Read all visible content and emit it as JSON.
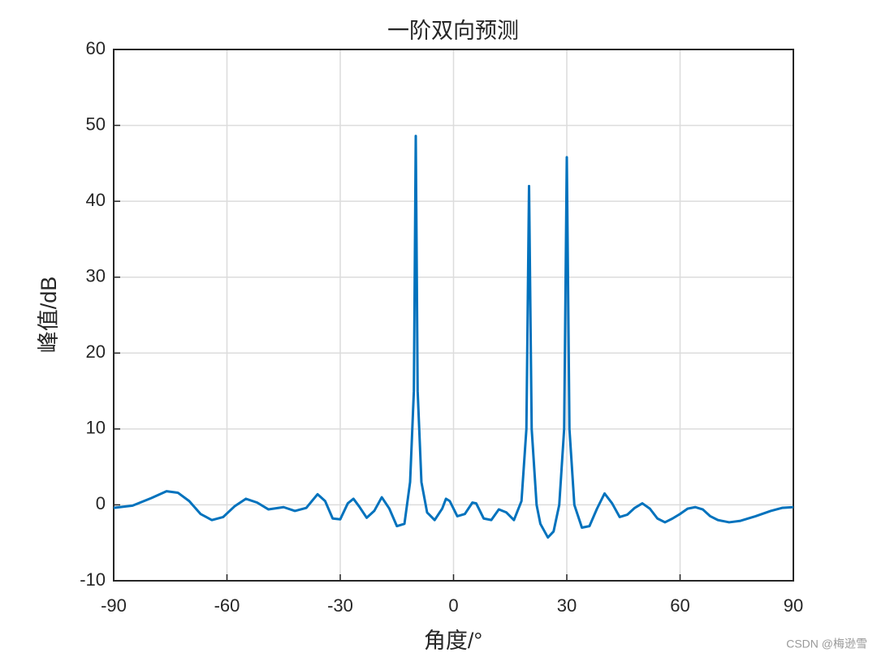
{
  "chart_data": {
    "type": "line",
    "title": "一阶双向预测",
    "x_label": "角度/°",
    "y_label": "峰值/dB",
    "watermark": "CSDN @梅逊雪",
    "xlim": [
      -90,
      90
    ],
    "ylim": [
      -10,
      60
    ],
    "xticks": [
      -90,
      -60,
      -30,
      0,
      30,
      60,
      90
    ],
    "yticks": [
      -10,
      0,
      10,
      20,
      30,
      40,
      50,
      60
    ],
    "grid": true,
    "series": [
      {
        "color": "#0072bd",
        "x": [
          -90,
          -85,
          -80,
          -76,
          -73,
          -70,
          -67,
          -64,
          -61,
          -58,
          -55,
          -52,
          -49,
          -45,
          -42,
          -39,
          -36,
          -34,
          -32,
          -30,
          -28,
          -26.5,
          -25,
          -23,
          -21,
          -19,
          -17,
          -15,
          -13,
          -11.5,
          -10.5,
          -10,
          -9.5,
          -8.5,
          -7,
          -5,
          -3,
          -2,
          -1,
          1,
          3,
          5,
          6,
          8,
          10,
          12,
          14,
          16,
          18,
          19.3,
          20,
          20.7,
          22,
          23,
          25,
          26.5,
          28,
          29.3,
          30,
          30.7,
          32,
          34,
          36,
          38,
          40,
          42,
          44,
          46,
          48,
          50,
          52,
          54,
          56,
          58,
          60,
          62,
          64,
          66,
          68,
          70,
          73,
          76,
          80,
          84,
          87,
          90
        ],
        "values": [
          -0.4,
          -0.1,
          0.9,
          1.8,
          1.6,
          0.5,
          -1.2,
          -2.0,
          -1.6,
          -0.2,
          0.8,
          0.3,
          -0.6,
          -0.3,
          -0.8,
          -0.4,
          1.4,
          0.5,
          -1.8,
          -1.9,
          0.2,
          0.8,
          -0.2,
          -1.7,
          -0.8,
          1.0,
          -0.5,
          -2.8,
          -2.5,
          3,
          15,
          48.6,
          15,
          3,
          -1.0,
          -2.0,
          -0.5,
          0.8,
          0.5,
          -1.5,
          -1.2,
          0.3,
          0.2,
          -1.8,
          -2.0,
          -0.6,
          -1.0,
          -2.0,
          0.5,
          10,
          42,
          10,
          0,
          -2.5,
          -4.3,
          -3.5,
          0,
          10,
          45.8,
          10,
          0,
          -3.0,
          -2.8,
          -0.5,
          1.5,
          0.2,
          -1.6,
          -1.3,
          -0.4,
          0.2,
          -0.5,
          -1.8,
          -2.3,
          -1.8,
          -1.2,
          -0.5,
          -0.3,
          -0.6,
          -1.5,
          -2.0,
          -2.3,
          -2.1,
          -1.5,
          -0.8,
          -0.4,
          -0.3
        ]
      }
    ]
  }
}
